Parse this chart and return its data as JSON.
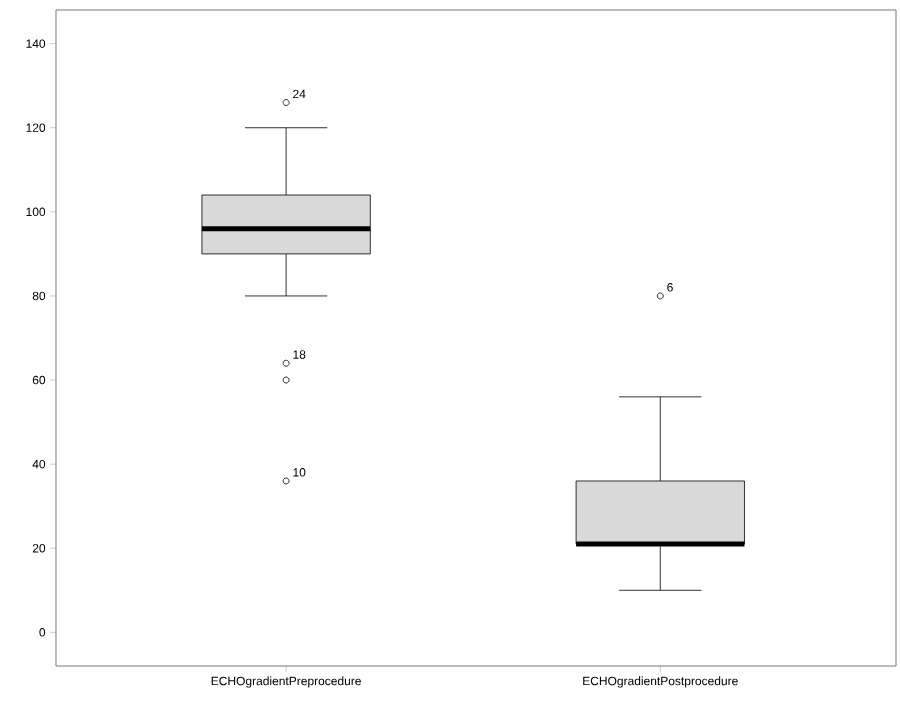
{
  "chart_data": {
    "type": "box",
    "categories": [
      "ECHOgradientPreprocedure",
      "ECHOgradientPostprocedure"
    ],
    "boxes": [
      {
        "low": 80,
        "q1": 90,
        "median": 96,
        "q3": 104,
        "high": 120
      },
      {
        "low": 10,
        "q1": 21,
        "median": 21,
        "q3": 36,
        "high": 56
      }
    ],
    "color": "#d9d9d9",
    "series": [
      {
        "type": "scatter",
        "color": "#000000",
        "marker": "circle",
        "x": [
          "ECHOgradientPreprocedure",
          "ECHOgradientPreprocedure",
          "ECHOgradientPreprocedure",
          "ECHOgradientPreprocedure",
          "ECHOgradientPostprocedure"
        ],
        "values": [
          126,
          64,
          60,
          36,
          80
        ]
      }
    ],
    "ylim": [
      -8,
      148
    ],
    "yticks": [
      0,
      20,
      40,
      60,
      80,
      100,
      120,
      140
    ],
    "annotations": [
      {
        "text": "24",
        "x": "ECHOgradientPreprocedure",
        "y": 126
      },
      {
        "text": "18",
        "x": "ECHOgradientPreprocedure",
        "y": 64
      },
      {
        "text": "10",
        "x": "ECHOgradientPreprocedure",
        "y": 36
      },
      {
        "text": "6",
        "x": "ECHOgradientPostprocedure",
        "y": 80
      }
    ]
  }
}
